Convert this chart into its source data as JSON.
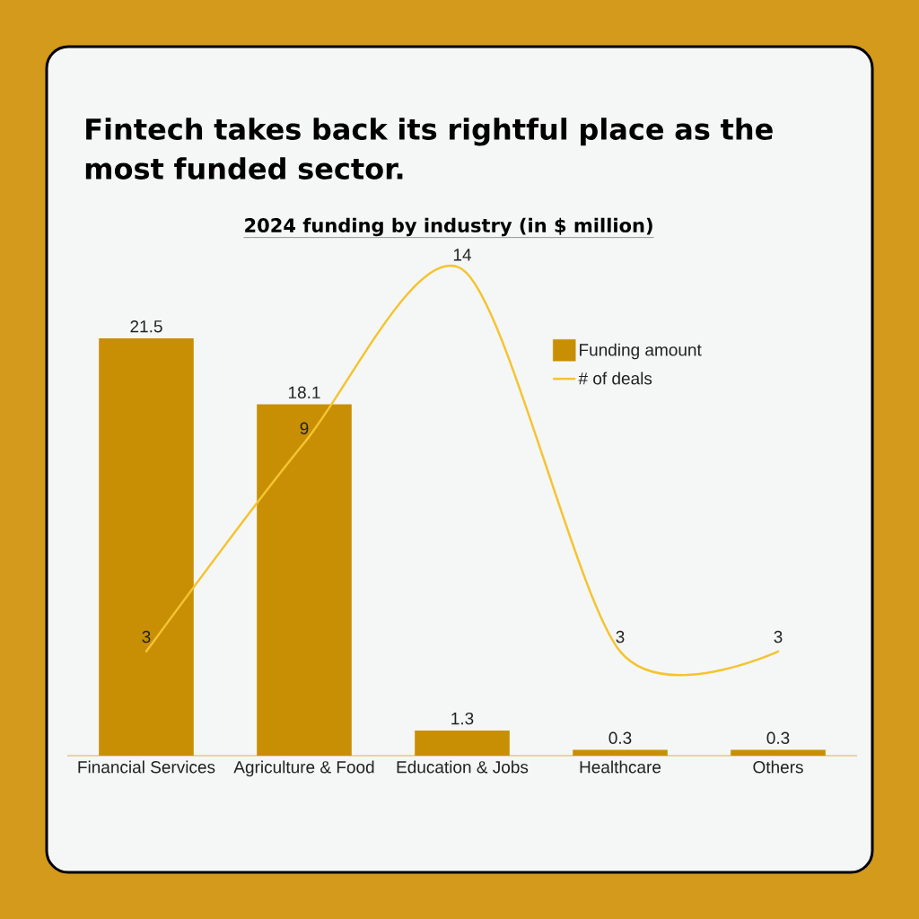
{
  "chart_data": {
    "type": "bar",
    "title": "Fintech takes back its rightful place as the most funded sector.",
    "subtitle": "2024 funding by industry (in $ million)",
    "categories": [
      "Financial Services",
      "Agriculture & Food",
      "Education & Jobs",
      "Healthcare",
      "Others"
    ],
    "series": [
      {
        "name": "Funding amount",
        "color": "#c88f04",
        "values": [
          21.5,
          18.1,
          1.3,
          0.3,
          0.3
        ]
      },
      {
        "name": "# of deals",
        "type": "line",
        "axis": "y2",
        "color": "#f4c430",
        "values": [
          3,
          9,
          14,
          3,
          3
        ]
      }
    ],
    "data_labels": true,
    "legend": "top right",
    "tick_labels": "x",
    "line_style": "solid"
  }
}
